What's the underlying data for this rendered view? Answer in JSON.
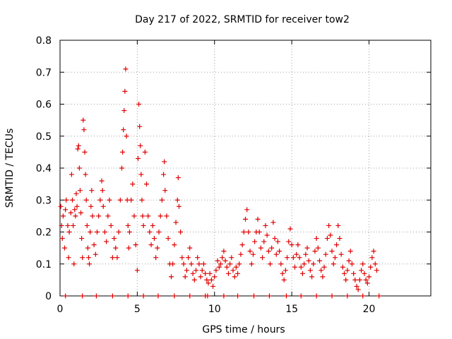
{
  "chart_data": {
    "type": "scatter",
    "title": "Day 217 of 2022, SRMTID for receiver tow2",
    "xlabel": "GPS time / hours",
    "ylabel": "SRMTID / TECUs",
    "xlim": [
      0,
      24
    ],
    "ylim": [
      0,
      0.8
    ],
    "xticks": [
      0,
      5,
      10,
      15,
      20
    ],
    "yticks": [
      0,
      0.1,
      0.2,
      0.3,
      0.4,
      0.5,
      0.6,
      0.7,
      0.8
    ],
    "xtick_labels": [
      "0",
      "5",
      "10",
      "15",
      "20"
    ],
    "ytick_labels": [
      "0",
      "0.1",
      "0.2",
      "0.3",
      "0.4",
      "0.5",
      "0.6",
      "0.7",
      "0.8"
    ],
    "grid": true,
    "marker": "plus",
    "color": "#e00000",
    "series": [
      {
        "name": "SRMTID",
        "points": [
          [
            0.05,
            0.28
          ],
          [
            0.1,
            0.22
          ],
          [
            0.15,
            0.18
          ],
          [
            0.2,
            0.25
          ],
          [
            0.3,
            0.15
          ],
          [
            0.35,
            0.27
          ],
          [
            0.4,
            0.3
          ],
          [
            0.5,
            0.22
          ],
          [
            0.55,
            0.12
          ],
          [
            0.6,
            0.2
          ],
          [
            0.7,
            0.26
          ],
          [
            0.75,
            0.38
          ],
          [
            0.8,
            0.3
          ],
          [
            0.85,
            0.22
          ],
          [
            0.9,
            0.1
          ],
          [
            0.95,
            0.27
          ],
          [
            1.0,
            0.25
          ],
          [
            1.05,
            0.32
          ],
          [
            1.1,
            0.28
          ],
          [
            1.15,
            0.46
          ],
          [
            1.2,
            0.47
          ],
          [
            1.25,
            0.4
          ],
          [
            1.3,
            0.33
          ],
          [
            1.35,
            0.26
          ],
          [
            1.4,
            0.18
          ],
          [
            1.45,
            0.12
          ],
          [
            1.5,
            0.55
          ],
          [
            1.55,
            0.52
          ],
          [
            1.6,
            0.45
          ],
          [
            1.65,
            0.38
          ],
          [
            1.7,
            0.3
          ],
          [
            1.75,
            0.22
          ],
          [
            1.8,
            0.15
          ],
          [
            1.85,
            0.12
          ],
          [
            1.9,
            0.1
          ],
          [
            1.95,
            0.2
          ],
          [
            2.0,
            0.28
          ],
          [
            2.05,
            0.33
          ],
          [
            2.1,
            0.25
          ],
          [
            2.2,
            0.16
          ],
          [
            2.3,
            0.13
          ],
          [
            2.4,
            0.2
          ],
          [
            2.5,
            0.25
          ],
          [
            2.6,
            0.3
          ],
          [
            2.7,
            0.36
          ],
          [
            2.75,
            0.33
          ],
          [
            2.8,
            0.28
          ],
          [
            2.9,
            0.2
          ],
          [
            3.0,
            0.17
          ],
          [
            3.1,
            0.25
          ],
          [
            3.2,
            0.3
          ],
          [
            3.3,
            0.22
          ],
          [
            3.4,
            0.12
          ],
          [
            3.5,
            0.18
          ],
          [
            3.6,
            0.15
          ],
          [
            3.7,
            0.12
          ],
          [
            3.8,
            0.2
          ],
          [
            3.9,
            0.3
          ],
          [
            4.0,
            0.4
          ],
          [
            4.05,
            0.45
          ],
          [
            4.1,
            0.52
          ],
          [
            4.15,
            0.58
          ],
          [
            4.2,
            0.64
          ],
          [
            4.25,
            0.71
          ],
          [
            4.3,
            0.5
          ],
          [
            4.35,
            0.3
          ],
          [
            4.4,
            0.22
          ],
          [
            4.45,
            0.15
          ],
          [
            4.5,
            0.2
          ],
          [
            4.6,
            0.3
          ],
          [
            4.7,
            0.35
          ],
          [
            4.8,
            0.25
          ],
          [
            4.9,
            0.16
          ],
          [
            5.0,
            0.08
          ],
          [
            5.05,
            0.43
          ],
          [
            5.1,
            0.6
          ],
          [
            5.15,
            0.53
          ],
          [
            5.2,
            0.47
          ],
          [
            5.25,
            0.38
          ],
          [
            5.3,
            0.3
          ],
          [
            5.35,
            0.25
          ],
          [
            5.4,
            0.22
          ],
          [
            5.5,
            0.45
          ],
          [
            5.6,
            0.35
          ],
          [
            5.7,
            0.25
          ],
          [
            5.8,
            0.2
          ],
          [
            5.9,
            0.16
          ],
          [
            6.0,
            0.22
          ],
          [
            6.1,
            0.18
          ],
          [
            6.2,
            0.12
          ],
          [
            6.3,
            0.15
          ],
          [
            6.4,
            0.2
          ],
          [
            6.5,
            0.25
          ],
          [
            6.6,
            0.3
          ],
          [
            6.7,
            0.38
          ],
          [
            6.75,
            0.42
          ],
          [
            6.8,
            0.33
          ],
          [
            6.9,
            0.25
          ],
          [
            7.0,
            0.18
          ],
          [
            7.1,
            0.1
          ],
          [
            7.2,
            0.06
          ],
          [
            7.3,
            0.1
          ],
          [
            7.4,
            0.16
          ],
          [
            7.5,
            0.23
          ],
          [
            7.6,
            0.3
          ],
          [
            7.65,
            0.37
          ],
          [
            7.7,
            0.28
          ],
          [
            7.8,
            0.2
          ],
          [
            7.9,
            0.12
          ],
          [
            8.0,
            0.1
          ],
          [
            8.1,
            0.06
          ],
          [
            8.2,
            0.08
          ],
          [
            8.3,
            0.12
          ],
          [
            8.4,
            0.15
          ],
          [
            8.5,
            0.1
          ],
          [
            8.6,
            0.07
          ],
          [
            8.7,
            0.05
          ],
          [
            8.8,
            0.08
          ],
          [
            8.9,
            0.12
          ],
          [
            9.0,
            0.1
          ],
          [
            9.1,
            0.06
          ],
          [
            9.2,
            0.08
          ],
          [
            9.3,
            0.1
          ],
          [
            9.4,
            0.07
          ],
          [
            9.5,
            0.05
          ],
          [
            9.6,
            0.04
          ],
          [
            9.7,
            0.07
          ],
          [
            9.8,
            0.05
          ],
          [
            9.9,
            0.03
          ],
          [
            10.0,
            0.06
          ],
          [
            10.1,
            0.08
          ],
          [
            10.2,
            0.11
          ],
          [
            10.3,
            0.09
          ],
          [
            10.4,
            0.1
          ],
          [
            10.5,
            0.12
          ],
          [
            10.6,
            0.14
          ],
          [
            10.7,
            0.11
          ],
          [
            10.8,
            0.09
          ],
          [
            10.9,
            0.07
          ],
          [
            11.0,
            0.1
          ],
          [
            11.1,
            0.12
          ],
          [
            11.2,
            0.08
          ],
          [
            11.3,
            0.06
          ],
          [
            11.4,
            0.09
          ],
          [
            11.5,
            0.07
          ],
          [
            11.6,
            0.1
          ],
          [
            11.7,
            0.13
          ],
          [
            11.8,
            0.16
          ],
          [
            11.9,
            0.2
          ],
          [
            12.0,
            0.24
          ],
          [
            12.1,
            0.27
          ],
          [
            12.2,
            0.2
          ],
          [
            12.3,
            0.14
          ],
          [
            12.4,
            0.1
          ],
          [
            12.5,
            0.13
          ],
          [
            12.6,
            0.17
          ],
          [
            12.7,
            0.2
          ],
          [
            12.8,
            0.24
          ],
          [
            12.9,
            0.2
          ],
          [
            13.0,
            0.15
          ],
          [
            13.1,
            0.12
          ],
          [
            13.2,
            0.17
          ],
          [
            13.3,
            0.22
          ],
          [
            13.4,
            0.19
          ],
          [
            13.5,
            0.14
          ],
          [
            13.6,
            0.1
          ],
          [
            13.7,
            0.15
          ],
          [
            13.8,
            0.23
          ],
          [
            13.9,
            0.18
          ],
          [
            14.0,
            0.13
          ],
          [
            14.1,
            0.17
          ],
          [
            14.2,
            0.14
          ],
          [
            14.3,
            0.1
          ],
          [
            14.4,
            0.07
          ],
          [
            14.5,
            0.05
          ],
          [
            14.6,
            0.08
          ],
          [
            14.7,
            0.12
          ],
          [
            14.8,
            0.17
          ],
          [
            14.9,
            0.21
          ],
          [
            15.0,
            0.16
          ],
          [
            15.1,
            0.12
          ],
          [
            15.2,
            0.09
          ],
          [
            15.3,
            0.13
          ],
          [
            15.4,
            0.16
          ],
          [
            15.5,
            0.12
          ],
          [
            15.6,
            0.09
          ],
          [
            15.7,
            0.07
          ],
          [
            15.8,
            0.1
          ],
          [
            15.9,
            0.13
          ],
          [
            16.0,
            0.15
          ],
          [
            16.1,
            0.11
          ],
          [
            16.2,
            0.08
          ],
          [
            16.3,
            0.06
          ],
          [
            16.4,
            0.1
          ],
          [
            16.5,
            0.14
          ],
          [
            16.6,
            0.18
          ],
          [
            16.7,
            0.15
          ],
          [
            16.8,
            0.11
          ],
          [
            16.9,
            0.08
          ],
          [
            17.0,
            0.06
          ],
          [
            17.1,
            0.09
          ],
          [
            17.2,
            0.13
          ],
          [
            17.3,
            0.18
          ],
          [
            17.4,
            0.22
          ],
          [
            17.5,
            0.19
          ],
          [
            17.6,
            0.14
          ],
          [
            17.7,
            0.1
          ],
          [
            17.8,
            0.12
          ],
          [
            17.9,
            0.16
          ],
          [
            18.0,
            0.22
          ],
          [
            18.1,
            0.18
          ],
          [
            18.2,
            0.13
          ],
          [
            18.3,
            0.09
          ],
          [
            18.4,
            0.07
          ],
          [
            18.5,
            0.05
          ],
          [
            18.6,
            0.08
          ],
          [
            18.7,
            0.11
          ],
          [
            18.8,
            0.14
          ],
          [
            18.9,
            0.1
          ],
          [
            19.0,
            0.07
          ],
          [
            19.1,
            0.05
          ],
          [
            19.2,
            0.03
          ],
          [
            19.3,
            0.02
          ],
          [
            19.4,
            0.05
          ],
          [
            19.5,
            0.08
          ],
          [
            19.6,
            0.1
          ],
          [
            19.7,
            0.07
          ],
          [
            19.8,
            0.05
          ],
          [
            19.9,
            0.04
          ],
          [
            20.0,
            0.06
          ],
          [
            20.1,
            0.09
          ],
          [
            20.2,
            0.12
          ],
          [
            20.3,
            0.14
          ],
          [
            20.4,
            0.1
          ],
          [
            20.5,
            0.08
          ]
        ]
      },
      {
        "name": "baseline-markers",
        "points": [
          [
            0.35,
            0
          ],
          [
            1.45,
            0
          ],
          [
            2.35,
            0
          ],
          [
            3.4,
            0
          ],
          [
            4.4,
            0
          ],
          [
            5.4,
            0
          ],
          [
            6.35,
            0
          ],
          [
            7.4,
            0
          ],
          [
            8.4,
            0
          ],
          [
            9.4,
            0
          ],
          [
            9.55,
            0
          ],
          [
            10.6,
            0
          ],
          [
            11.5,
            0
          ],
          [
            12.55,
            0
          ],
          [
            13.55,
            0
          ],
          [
            14.65,
            0
          ],
          [
            15.6,
            0
          ],
          [
            16.6,
            0
          ],
          [
            17.6,
            0
          ],
          [
            18.6,
            0
          ],
          [
            19.6,
            0
          ],
          [
            20.65,
            0
          ]
        ]
      }
    ]
  }
}
